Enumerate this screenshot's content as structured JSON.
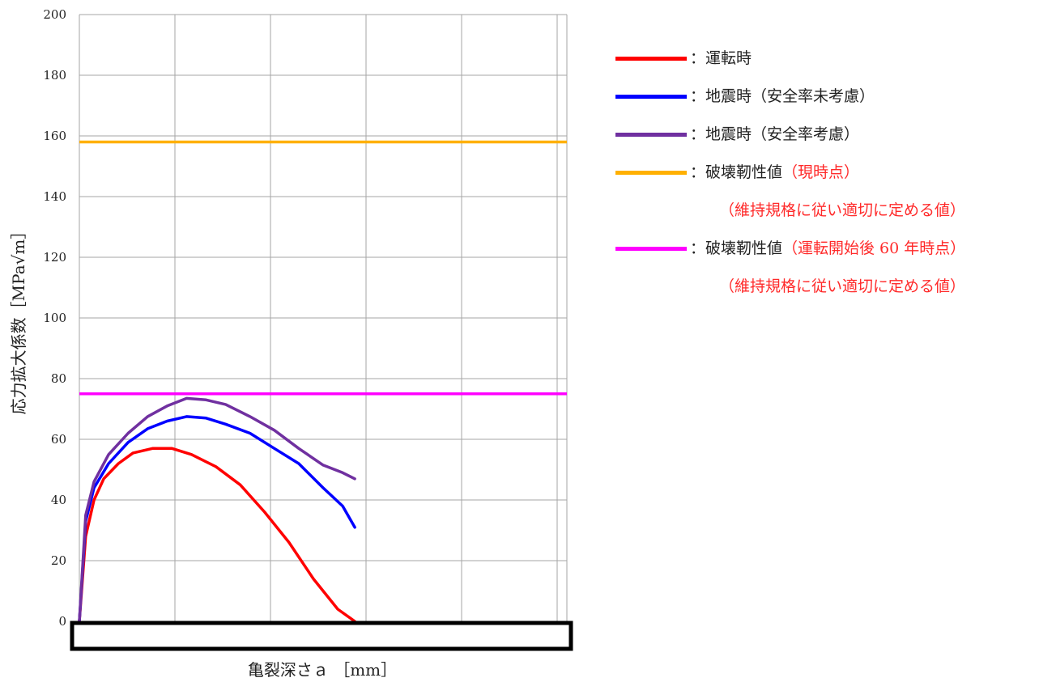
{
  "chart_data": {
    "type": "line",
    "xlabel": "亀裂深さａ ［mm］",
    "ylabel": "応力拡大係数［MPa√m］",
    "ylim": [
      0,
      200
    ],
    "yticks": [
      0,
      20,
      40,
      60,
      80,
      100,
      120,
      140,
      160,
      180,
      200
    ],
    "grid": true,
    "legend_position": "right",
    "x_units": "fraction of x-axis width (x-axis tick labels masked in original)",
    "series": [
      {
        "name": "：運転時",
        "color": "#ff0000",
        "points": [
          [
            0,
            0
          ],
          [
            0.013,
            28
          ],
          [
            0.03,
            40
          ],
          [
            0.05,
            47
          ],
          [
            0.08,
            52
          ],
          [
            0.11,
            55.5
          ],
          [
            0.15,
            57
          ],
          [
            0.19,
            57
          ],
          [
            0.23,
            55
          ],
          [
            0.28,
            51
          ],
          [
            0.33,
            45
          ],
          [
            0.38,
            36
          ],
          [
            0.43,
            26
          ],
          [
            0.48,
            14
          ],
          [
            0.53,
            4
          ],
          [
            0.565,
            0
          ]
        ]
      },
      {
        "name": "：地震時（安全率未考慮）",
        "color": "#0000ff",
        "points": [
          [
            0,
            0
          ],
          [
            0.013,
            33
          ],
          [
            0.03,
            44
          ],
          [
            0.06,
            52
          ],
          [
            0.1,
            59
          ],
          [
            0.14,
            63.5
          ],
          [
            0.18,
            66
          ],
          [
            0.22,
            67.5
          ],
          [
            0.26,
            67
          ],
          [
            0.3,
            65
          ],
          [
            0.35,
            62
          ],
          [
            0.4,
            57
          ],
          [
            0.45,
            52
          ],
          [
            0.5,
            44
          ],
          [
            0.54,
            38
          ],
          [
            0.565,
            31
          ]
        ]
      },
      {
        "name": "：地震時（安全率考慮）",
        "color": "#7030a0",
        "points": [
          [
            0,
            0
          ],
          [
            0.013,
            35
          ],
          [
            0.03,
            46
          ],
          [
            0.06,
            55
          ],
          [
            0.1,
            62
          ],
          [
            0.14,
            67.5
          ],
          [
            0.18,
            71
          ],
          [
            0.22,
            73.5
          ],
          [
            0.26,
            73
          ],
          [
            0.3,
            71.5
          ],
          [
            0.35,
            67.5
          ],
          [
            0.4,
            63
          ],
          [
            0.45,
            57
          ],
          [
            0.5,
            51.5
          ],
          [
            0.54,
            49
          ],
          [
            0.565,
            47
          ]
        ]
      },
      {
        "name": "：破壊靭性値",
        "name_note": "（現時点）",
        "sub_note": "（維持規格に従い適切に定める値）",
        "color": "#ffb000",
        "constant": 158
      },
      {
        "name": "：破壊靭性値",
        "name_note": "（運転開始後 60 年時点）",
        "sub_note": "（維持規格に従い適切に定める値）",
        "color": "#ff00ff",
        "constant": 75
      }
    ]
  }
}
